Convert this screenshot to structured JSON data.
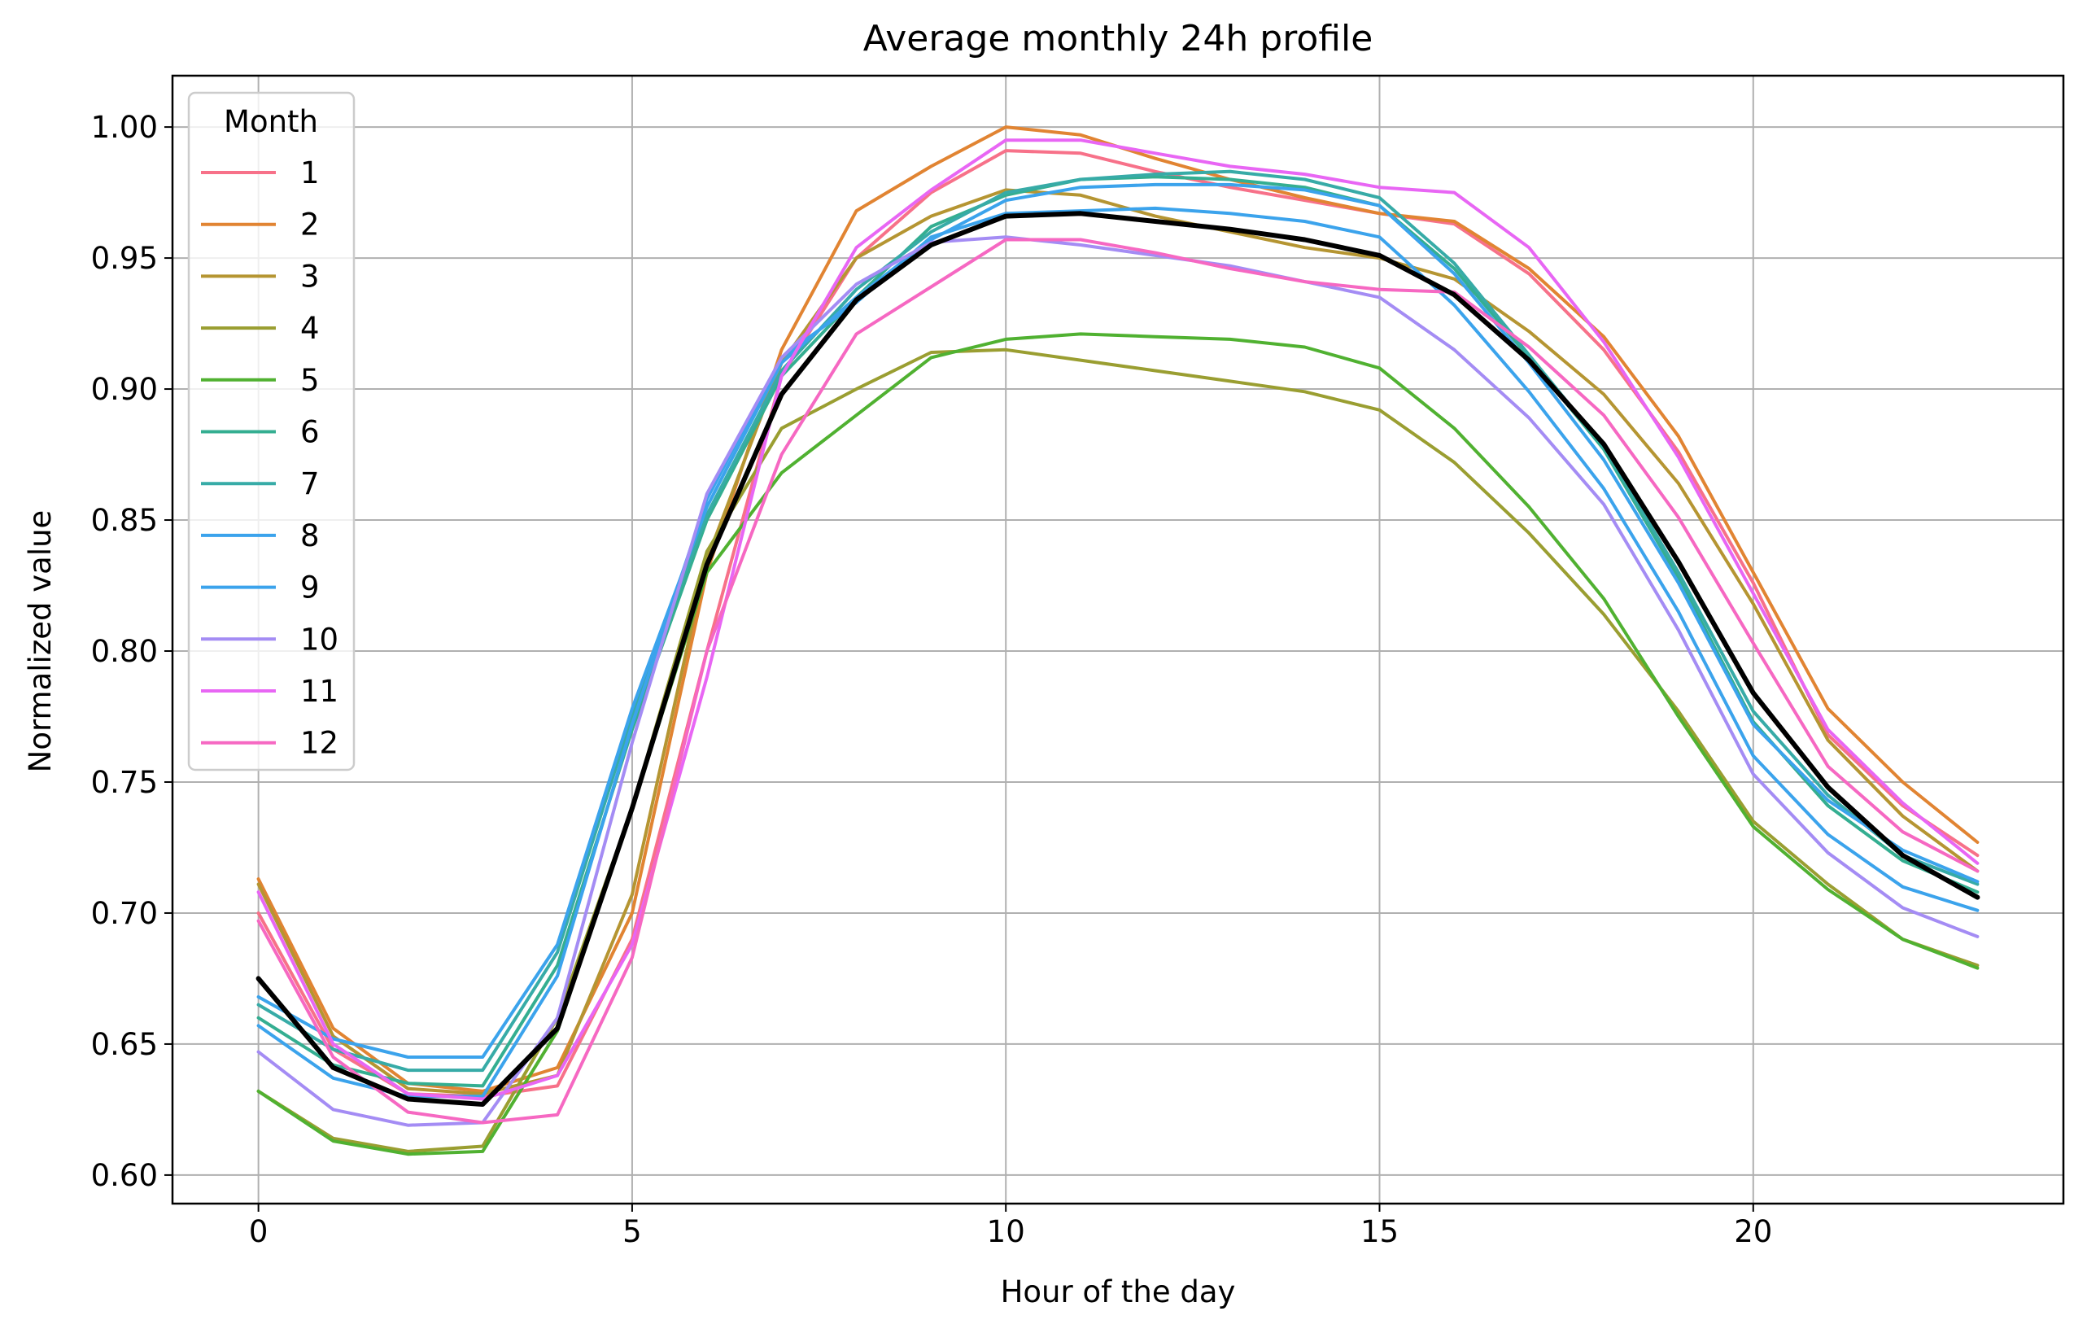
{
  "chart_data": {
    "type": "line",
    "title": "Average monthly 24h profile",
    "xlabel": "Hour of the day",
    "ylabel": "Normalized value",
    "xlim": [
      -1.15,
      24.15
    ],
    "ylim": [
      0.5891,
      1.0196
    ],
    "xticks": [
      0,
      5,
      10,
      15,
      20
    ],
    "xtick_labels": [
      "0",
      "5",
      "10",
      "15",
      "20"
    ],
    "yticks": [
      0.6,
      0.65,
      0.7,
      0.75,
      0.8,
      0.85,
      0.9,
      0.95,
      1.0
    ],
    "ytick_labels": [
      "0.60",
      "0.65",
      "0.70",
      "0.75",
      "0.80",
      "0.85",
      "0.90",
      "0.95",
      "1.00"
    ],
    "grid": true,
    "legend": {
      "title": "Month",
      "placement": "upper-left"
    },
    "x": [
      0,
      1,
      2,
      3,
      4,
      5,
      6,
      7,
      8,
      9,
      10,
      11,
      12,
      13,
      14,
      15,
      16,
      17,
      18,
      19,
      20,
      21,
      22,
      23
    ],
    "series": [
      {
        "name": "1",
        "color": "#f77189",
        "values": [
          0.7,
          0.648,
          0.631,
          0.63,
          0.634,
          0.69,
          0.8,
          0.905,
          0.95,
          0.975,
          0.991,
          0.99,
          0.983,
          0.977,
          0.972,
          0.967,
          0.963,
          0.944,
          0.915,
          0.876,
          0.826,
          0.768,
          0.741,
          0.722
        ]
      },
      {
        "name": "2",
        "color": "#e18432",
        "values": [
          0.713,
          0.656,
          0.635,
          0.632,
          0.641,
          0.7,
          0.83,
          0.915,
          0.968,
          0.985,
          1.0,
          0.997,
          0.988,
          0.98,
          0.973,
          0.967,
          0.964,
          0.946,
          0.92,
          0.882,
          0.83,
          0.778,
          0.75,
          0.727
        ]
      },
      {
        "name": "3",
        "color": "#b59532",
        "values": [
          0.711,
          0.653,
          0.633,
          0.631,
          0.638,
          0.707,
          0.835,
          0.91,
          0.95,
          0.966,
          0.976,
          0.974,
          0.966,
          0.96,
          0.954,
          0.95,
          0.942,
          0.922,
          0.898,
          0.864,
          0.818,
          0.766,
          0.737,
          0.716
        ]
      },
      {
        "name": "4",
        "color": "#9a9e31",
        "values": [
          0.632,
          0.614,
          0.609,
          0.611,
          0.66,
          0.74,
          0.838,
          0.885,
          0.9,
          0.914,
          0.915,
          0.911,
          0.907,
          0.903,
          0.899,
          0.892,
          0.872,
          0.845,
          0.814,
          0.777,
          0.735,
          0.711,
          0.69,
          0.68
        ]
      },
      {
        "name": "5",
        "color": "#50b131",
        "values": [
          0.632,
          0.613,
          0.608,
          0.609,
          0.655,
          0.74,
          0.83,
          0.868,
          0.89,
          0.912,
          0.919,
          0.921,
          0.92,
          0.919,
          0.916,
          0.908,
          0.885,
          0.855,
          0.82,
          0.775,
          0.733,
          0.709,
          0.69,
          0.679
        ]
      },
      {
        "name": "6",
        "color": "#34ae91",
        "values": [
          0.66,
          0.642,
          0.635,
          0.634,
          0.68,
          0.77,
          0.85,
          0.905,
          0.935,
          0.962,
          0.974,
          0.98,
          0.981,
          0.98,
          0.977,
          0.97,
          0.946,
          0.912,
          0.877,
          0.828,
          0.773,
          0.741,
          0.72,
          0.708
        ]
      },
      {
        "name": "7",
        "color": "#37aba7",
        "values": [
          0.665,
          0.648,
          0.64,
          0.64,
          0.685,
          0.775,
          0.852,
          0.907,
          0.938,
          0.96,
          0.975,
          0.98,
          0.982,
          0.983,
          0.98,
          0.973,
          0.948,
          0.913,
          0.878,
          0.83,
          0.777,
          0.745,
          0.722,
          0.711
        ]
      },
      {
        "name": "8",
        "color": "#3ba3ec",
        "values": [
          0.668,
          0.652,
          0.645,
          0.645,
          0.688,
          0.778,
          0.855,
          0.91,
          0.935,
          0.957,
          0.972,
          0.977,
          0.978,
          0.978,
          0.976,
          0.97,
          0.944,
          0.91,
          0.873,
          0.826,
          0.772,
          0.743,
          0.724,
          0.712
        ]
      },
      {
        "name": "9",
        "color": "#3ba3ec",
        "values": [
          0.657,
          0.637,
          0.63,
          0.63,
          0.676,
          0.772,
          0.858,
          0.912,
          0.933,
          0.958,
          0.967,
          0.968,
          0.969,
          0.967,
          0.964,
          0.958,
          0.932,
          0.899,
          0.862,
          0.815,
          0.76,
          0.73,
          0.71,
          0.701
        ]
      },
      {
        "name": "10",
        "color": "#a48cf4",
        "values": [
          0.647,
          0.625,
          0.619,
          0.62,
          0.66,
          0.765,
          0.86,
          0.912,
          0.94,
          0.956,
          0.958,
          0.955,
          0.951,
          0.947,
          0.941,
          0.935,
          0.915,
          0.889,
          0.856,
          0.808,
          0.753,
          0.723,
          0.702,
          0.691
        ]
      },
      {
        "name": "11",
        "color": "#e866f4",
        "values": [
          0.708,
          0.65,
          0.631,
          0.629,
          0.638,
          0.688,
          0.79,
          0.905,
          0.954,
          0.976,
          0.995,
          0.995,
          0.99,
          0.985,
          0.982,
          0.977,
          0.975,
          0.954,
          0.918,
          0.874,
          0.822,
          0.77,
          0.742,
          0.719
        ]
      },
      {
        "name": "12",
        "color": "#f668c2",
        "values": [
          0.697,
          0.645,
          0.624,
          0.62,
          0.623,
          0.683,
          0.8,
          0.875,
          0.921,
          0.939,
          0.957,
          0.957,
          0.952,
          0.946,
          0.941,
          0.938,
          0.937,
          0.916,
          0.89,
          0.851,
          0.803,
          0.756,
          0.731,
          0.716
        ]
      },
      {
        "color": "#000000",
        "values": [
          0.675,
          0.641,
          0.629,
          0.627,
          0.656,
          0.74,
          0.833,
          0.898,
          0.934,
          0.955,
          0.966,
          0.967,
          0.964,
          0.961,
          0.957,
          0.951,
          0.936,
          0.911,
          0.879,
          0.834,
          0.784,
          0.748,
          0.722,
          0.706
        ]
      }
    ]
  }
}
